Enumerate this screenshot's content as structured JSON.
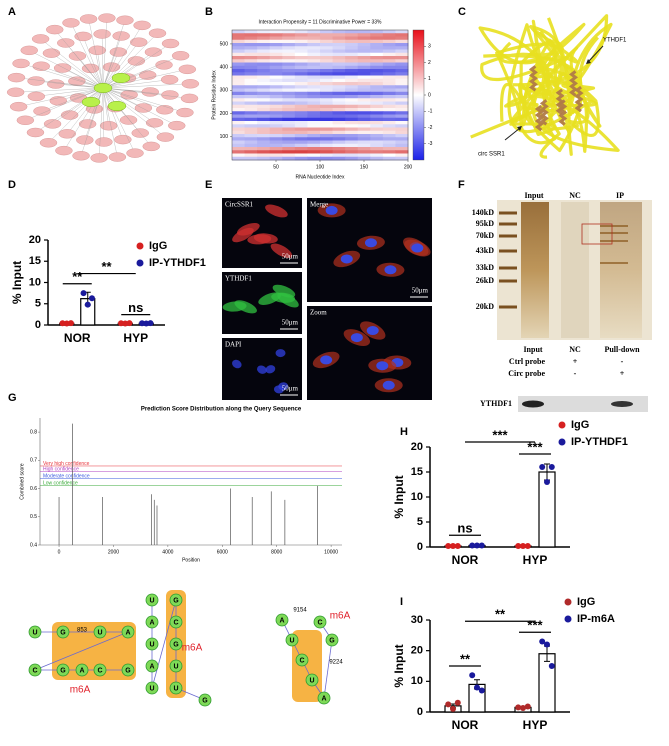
{
  "A": {
    "letter": "A"
  },
  "B": {
    "letter": "B",
    "title": "Interaction Propensity = 11    Discriminative  Power = 33%",
    "xlabel": "RNA Nucleotide Index",
    "ylabel": "Protein Residue Index",
    "xlim": [
      0,
      200
    ],
    "xticks": [
      50,
      100,
      150,
      200
    ],
    "ylim": [
      0,
      560
    ],
    "yticks": [
      100,
      200,
      300,
      400,
      500
    ],
    "clim": [
      -4,
      4
    ],
    "cticks": [
      3,
      2,
      1,
      0,
      -1,
      -2,
      -3
    ]
  },
  "C": {
    "letter": "C",
    "labels": [
      "YTHDF1",
      "circ SSR1"
    ]
  },
  "D": {
    "letter": "D",
    "type": "bar",
    "ylabel": "% Input",
    "categories": [
      "NOR",
      "HYP"
    ],
    "ylim": [
      0,
      20
    ],
    "yticks": [
      0,
      5,
      10,
      15,
      20
    ],
    "series": [
      {
        "name": "IgG",
        "color": "#d62020",
        "values": [
          0.4,
          0.4
        ],
        "errors": [
          0.05,
          0.05
        ],
        "points": [
          [
            0.4,
            0.35,
            0.45
          ],
          [
            0.4,
            0.35,
            0.45
          ]
        ]
      },
      {
        "name": "IP-YTHDF1",
        "color": "#1a1a9c",
        "values": [
          6.2,
          0.4
        ],
        "errors": [
          1.5,
          0.05
        ],
        "points": [
          [
            7.5,
            4.8,
            6.3
          ],
          [
            0.4,
            0.35,
            0.45
          ]
        ]
      }
    ],
    "significance": {
      "within": [
        "**",
        "ns"
      ],
      "between": "**"
    }
  },
  "E": {
    "letter": "E",
    "labels": [
      "CircSSR1",
      "YTHDF1",
      "DAPI",
      "Merge",
      "Zoom"
    ],
    "scale_bars": [
      "50μm",
      "50μm",
      "50μm",
      "50μm"
    ]
  },
  "F": {
    "letter": "F",
    "lanes": [
      "Input",
      "NC",
      "IP"
    ],
    "markers": [
      "140kD",
      "95kD",
      "70kD",
      "43kD",
      "33kD",
      "26kD",
      "20kD"
    ],
    "blot": {
      "columns": [
        "Input",
        "NC",
        "Pull-down"
      ],
      "rows": [
        {
          "label": "Ctrl probe",
          "cells": [
            "+",
            "-"
          ]
        },
        {
          "label": "Circ probe",
          "cells": [
            "-",
            "+"
          ]
        }
      ],
      "band": "YTHDF1"
    }
  },
  "G": {
    "letter": "G",
    "title": "Prediction Score Distribution along the Query Sequence",
    "xlabel": "Position",
    "ylabel": "Combined score",
    "xlim": [
      -700,
      10400
    ],
    "xticks": [
      0,
      2000,
      4000,
      6000,
      8000,
      10000
    ],
    "ylim": [
      0.4,
      0.85
    ],
    "yticks": [
      0.4,
      0.5,
      0.6,
      0.7,
      0.8
    ],
    "thresholds": [
      {
        "name": "Very high confidence",
        "color": "#e8333a",
        "value": 0.68
      },
      {
        "name": "High confidence",
        "color": "#b040c0",
        "value": 0.66
      },
      {
        "name": "Moderate confidence",
        "color": "#3a5adf",
        "value": 0.635
      },
      {
        "name": "Low confidence",
        "color": "#3aaa3a",
        "value": 0.61
      }
    ],
    "peaks": {
      "x": [
        0,
        500,
        1600,
        3400,
        3500,
        3600,
        6300,
        7100,
        7800,
        8300,
        9500
      ],
      "scores": [
        0.57,
        0.83,
        0.57,
        0.58,
        0.56,
        0.54,
        0.6,
        0.57,
        0.59,
        0.56,
        0.61
      ]
    },
    "structures": [
      {
        "bases": [
          "U",
          "G",
          "U",
          "A",
          "C",
          "G",
          "A",
          "C",
          "G"
        ],
        "sites": [
          "853"
        ],
        "label": "m6A"
      },
      {
        "bases": [
          "U",
          "A",
          "U",
          "A",
          "U",
          "G",
          "C",
          "G",
          "U",
          "U",
          "G"
        ],
        "sites": [],
        "label": "m6A"
      },
      {
        "bases": [
          "A",
          "U",
          "C",
          "U",
          "A",
          "G",
          "C"
        ],
        "sites": [
          "9154",
          "9224"
        ],
        "label": "m6A"
      }
    ]
  },
  "H": {
    "letter": "H",
    "type": "bar",
    "ylabel": "% Input",
    "categories": [
      "NOR",
      "HYP"
    ],
    "ylim": [
      0,
      20
    ],
    "yticks": [
      0,
      5,
      10,
      15,
      20
    ],
    "series": [
      {
        "name": "IgG",
        "color": "#d62020",
        "values": [
          0.2,
          0.2
        ],
        "errors": [
          0.05,
          0.05
        ],
        "points": [
          [
            0.2,
            0.2,
            0.2
          ],
          [
            0.2,
            0.2,
            0.2
          ]
        ]
      },
      {
        "name": "IP-YTHDF1",
        "color": "#1a1a9c",
        "values": [
          0.3,
          15
        ],
        "errors": [
          0.05,
          1.6
        ],
        "points": [
          [
            0.3,
            0.3,
            0.3
          ],
          [
            16,
            13,
            16
          ]
        ]
      }
    ],
    "significance": {
      "within": [
        "ns",
        "***"
      ],
      "between": "***"
    }
  },
  "I": {
    "letter": "I",
    "type": "bar",
    "ylabel": "% Input",
    "categories": [
      "NOR",
      "HYP"
    ],
    "ylim": [
      0,
      30
    ],
    "yticks": [
      0,
      10,
      20,
      30
    ],
    "series": [
      {
        "name": "IgG",
        "color": "#b02a2a",
        "values": [
          2,
          1.5
        ],
        "errors": [
          0.6,
          0.2
        ],
        "points": [
          [
            2.5,
            1,
            3
          ],
          [
            1.5,
            1.3,
            1.8
          ]
        ]
      },
      {
        "name": "IP-m6A",
        "color": "#1a1a9c",
        "values": [
          9,
          19
        ],
        "errors": [
          1.5,
          2.5
        ],
        "points": [
          [
            12,
            8,
            7
          ],
          [
            23,
            22,
            15
          ]
        ]
      }
    ],
    "significance": {
      "within": [
        "**",
        "***"
      ],
      "between": "**"
    }
  }
}
